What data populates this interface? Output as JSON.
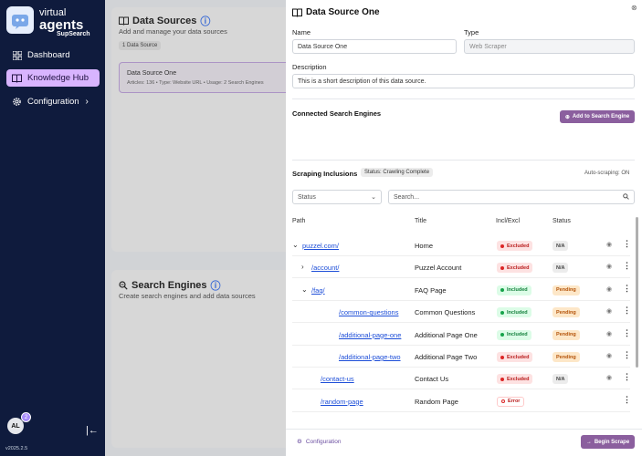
{
  "sidebar": {
    "brand_top": "virtual",
    "brand_main": "agents",
    "brand_sub": "SupSearch",
    "items": [
      {
        "label": "Dashboard",
        "icon": "grid-icon"
      },
      {
        "label": "Knowledge Hub",
        "icon": "book-icon",
        "active": true
      },
      {
        "label": "Configuration",
        "icon": "gear-icon",
        "chevron": "›"
      }
    ],
    "avatar_initials": "AL",
    "avatar_badge": "2",
    "collapse": "|←",
    "version": "v2025.2.5"
  },
  "background": {
    "data_sources_title": "Data Sources",
    "data_sources_sub": "Add and manage your data sources",
    "data_sources_chip": "1 Data Source",
    "card_title": "Data Source One",
    "card_meta": "Articles: 136 • Type: Website URL • Usage: 2 Search Engines",
    "search_engines_title": "Search Engines",
    "search_engines_sub": "Create search engines and add data sources"
  },
  "drawer": {
    "title": "Data Source One",
    "close": "⊗",
    "name_label": "Name",
    "name_value": "Data Source One",
    "type_label": "Type",
    "type_value": "Web Scraper",
    "description_label": "Description",
    "description_value": "This is a short description of this data source.",
    "connected_title": "Connected Search Engines",
    "add_button": "Add to Search Engine",
    "scraping_title": "Scraping Inclusions",
    "scraping_status": "Status: Crawling Complete",
    "auto_scraping": "Auto-scraping: ON",
    "status_filter": "Status",
    "search_placeholder": "Search...",
    "columns": [
      "Path",
      "Title",
      "Incl/Excl",
      "Status"
    ],
    "rows": [
      {
        "path": "puzzel.com/",
        "expander": "⌄",
        "title": "Home",
        "incl": "Excluded",
        "status": "N/A"
      },
      {
        "path": "/account/",
        "expander": "›",
        "title": "Puzzel Account",
        "incl": "Excluded",
        "status": "N/A"
      },
      {
        "path": "/faq/",
        "expander": "⌄",
        "title": "FAQ Page",
        "incl": "Included",
        "status": "Pending"
      },
      {
        "path": "/common-questions",
        "expander": "",
        "title": "Common Questions",
        "incl": "Included",
        "status": "Pending"
      },
      {
        "path": "/additional-page-one",
        "expander": "",
        "title": "Additional Page One",
        "incl": "Included",
        "status": "Pending"
      },
      {
        "path": "/additional-page-two",
        "expander": "",
        "title": "Additional Page Two",
        "incl": "Excluded",
        "status": "Pending"
      },
      {
        "path": "/contact-us",
        "expander": "",
        "title": "Contact Us",
        "incl": "Excluded",
        "status": "N/A"
      },
      {
        "path": "/random-page",
        "expander": "",
        "title": "Random Page",
        "incl": "Error",
        "status": ""
      }
    ],
    "footer_link": "Configuration",
    "begin_button": "Begin Scrape"
  },
  "colors": {
    "sidebar_bg": "#0f1b3d",
    "active_nav": "#d8b4fe",
    "accent": "#8b5f9e",
    "link": "#1d4ed8"
  }
}
